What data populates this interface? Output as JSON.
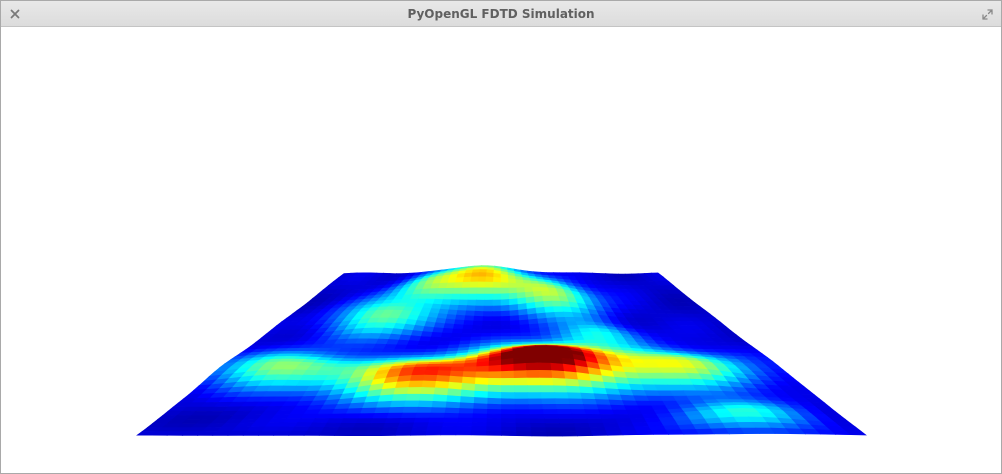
{
  "window": {
    "title": "PyOpenGL FDTD Simulation",
    "close_icon": "close-icon",
    "maximize_icon": "maximize-icon"
  },
  "viewport": {
    "background": "#ffffff",
    "render": "3d-surface",
    "colormap": "jet",
    "colors": [
      "#00008f",
      "#0000ff",
      "#0080ff",
      "#00ffff",
      "#80ff80",
      "#ffff00",
      "#ff8000",
      "#ff0000",
      "#800000"
    ]
  }
}
